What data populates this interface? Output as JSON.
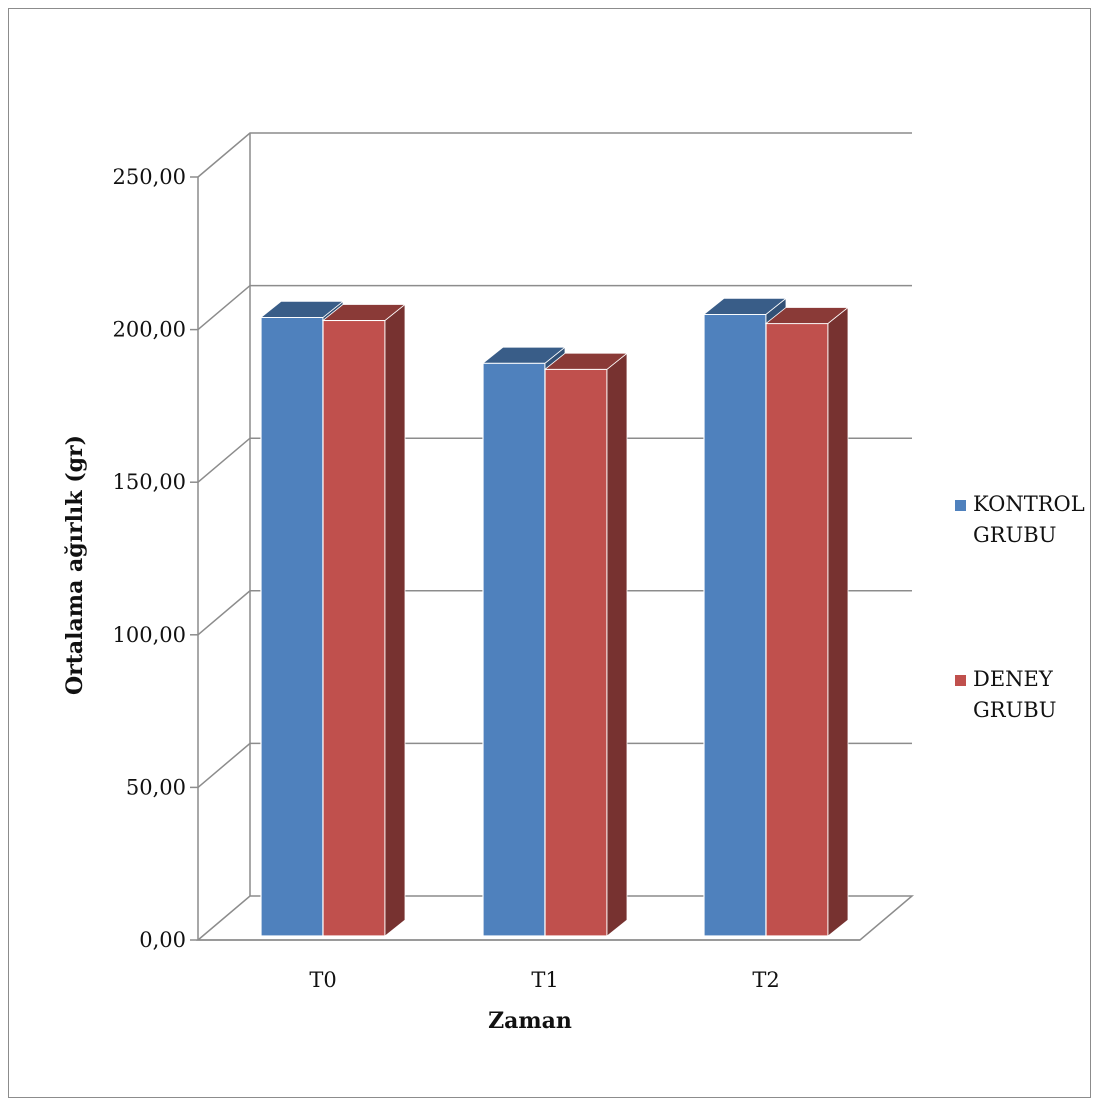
{
  "chart_data": {
    "type": "bar",
    "title": "",
    "xlabel": "Zaman",
    "ylabel": "Ortalama ağırlık (gr)",
    "categories": [
      "T0",
      "T1",
      "T2"
    ],
    "series": [
      {
        "name": "KONTROL GRUBU",
        "legend_lines": [
          "KONTROL",
          "GRUBU"
        ],
        "values": [
          204.0,
          189.0,
          205.0
        ],
        "color": "#4f81bd"
      },
      {
        "name": "DENEY GRUBU",
        "legend_lines": [
          "DENEY",
          "GRUBU"
        ],
        "values": [
          203.0,
          187.0,
          202.0
        ],
        "color": "#c0504d"
      }
    ],
    "ylim": [
      0,
      250
    ],
    "yticks": [
      "0,00",
      "50,00",
      "100,00",
      "150,00",
      "200,00",
      "250,00"
    ],
    "grid": true,
    "legend_position": "right",
    "style": "3d-column"
  }
}
